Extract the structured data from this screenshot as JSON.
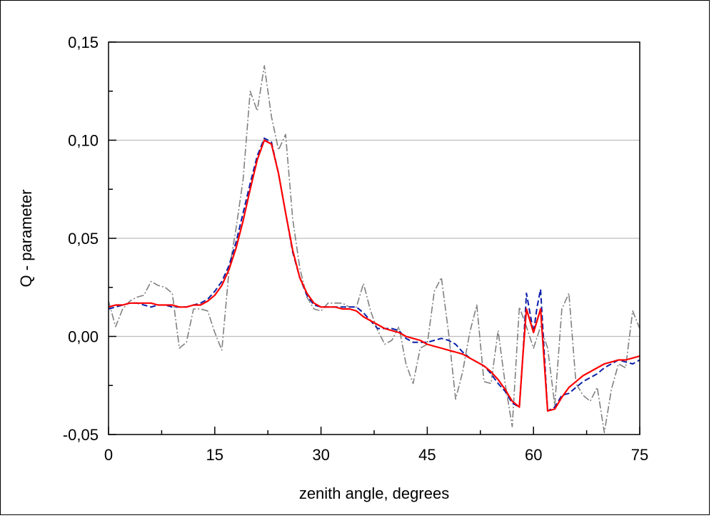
{
  "chart_data": {
    "type": "line",
    "title": "",
    "xlabel": "zenith angle, degrees",
    "ylabel": "Q - parameter",
    "xlim": [
      0,
      75
    ],
    "ylim": [
      -0.05,
      0.15
    ],
    "x_ticks": [
      0,
      15,
      30,
      45,
      60,
      75
    ],
    "x_tick_labels": [
      "0",
      "15",
      "30",
      "45",
      "60",
      "75"
    ],
    "y_ticks": [
      -0.05,
      0.0,
      0.05,
      0.1,
      0.15
    ],
    "y_tick_labels": [
      "-0,05",
      "0,00",
      "0,05",
      "0,10",
      "0,15"
    ],
    "grid": "horizontal",
    "legend": "none",
    "series": [
      {
        "style": "dash-dot",
        "color": "#808080",
        "x": [
          0,
          1,
          2,
          3,
          4,
          5,
          6,
          7,
          8,
          9,
          10,
          11,
          12,
          13,
          14,
          15,
          16,
          17,
          18,
          19,
          20,
          21,
          22,
          23,
          24,
          25,
          26,
          27,
          28,
          29,
          30,
          31,
          32,
          33,
          34,
          35,
          36,
          37,
          38,
          39,
          40,
          41,
          42,
          43,
          44,
          45,
          46,
          47,
          48,
          49,
          50,
          51,
          52,
          53,
          54,
          55,
          56,
          57,
          58,
          59,
          60,
          61,
          62,
          63,
          64,
          65,
          66,
          67,
          68,
          69,
          70,
          71,
          72,
          73,
          74,
          75
        ],
        "y": [
          0.018,
          0.005,
          0.014,
          0.018,
          0.02,
          0.021,
          0.028,
          0.026,
          0.025,
          0.022,
          -0.006,
          -0.003,
          0.014,
          0.014,
          0.013,
          0.002,
          -0.007,
          0.033,
          0.055,
          0.08,
          0.125,
          0.115,
          0.138,
          0.112,
          0.095,
          0.103,
          0.06,
          0.035,
          0.02,
          0.014,
          0.013,
          0.017,
          0.017,
          0.017,
          0.015,
          0.015,
          0.027,
          0.013,
          0.003,
          -0.004,
          -0.002,
          0.005,
          -0.014,
          -0.024,
          -0.006,
          -0.004,
          0.023,
          0.03,
          0.002,
          -0.032,
          -0.018,
          0.002,
          0.016,
          -0.023,
          -0.024,
          0.003,
          -0.024,
          -0.046,
          0.015,
          0.005,
          -0.006,
          0.005,
          -0.006,
          -0.035,
          0.014,
          0.022,
          -0.024,
          -0.03,
          -0.033,
          -0.026,
          -0.049,
          -0.027,
          -0.014,
          -0.016,
          0.013,
          0.004
        ]
      },
      {
        "style": "dashed",
        "color": "#0a1fa8",
        "x": [
          0,
          1,
          2,
          3,
          4,
          5,
          6,
          7,
          8,
          9,
          10,
          11,
          12,
          13,
          14,
          15,
          16,
          17,
          18,
          19,
          20,
          21,
          22,
          23,
          24,
          25,
          26,
          27,
          28,
          29,
          30,
          31,
          32,
          33,
          34,
          35,
          36,
          37,
          38,
          39,
          40,
          41,
          42,
          43,
          44,
          45,
          46,
          47,
          48,
          49,
          50,
          51,
          52,
          53,
          54,
          55,
          56,
          57,
          58,
          58.5,
          59,
          60,
          60.5,
          61,
          62,
          63,
          64,
          65,
          66,
          67,
          68,
          69,
          70,
          71,
          72,
          73,
          74,
          75
        ],
        "y": [
          0.014,
          0.015,
          0.016,
          0.017,
          0.017,
          0.016,
          0.015,
          0.016,
          0.016,
          0.015,
          0.015,
          0.015,
          0.016,
          0.017,
          0.019,
          0.023,
          0.028,
          0.036,
          0.048,
          0.063,
          0.078,
          0.092,
          0.101,
          0.099,
          0.083,
          0.063,
          0.043,
          0.03,
          0.021,
          0.016,
          0.015,
          0.015,
          0.015,
          0.015,
          0.015,
          0.015,
          0.012,
          0.008,
          0.004,
          0.004,
          0.004,
          0.003,
          -0.001,
          -0.003,
          -0.003,
          -0.003,
          -0.002,
          -0.001,
          -0.002,
          -0.004,
          -0.008,
          -0.011,
          -0.013,
          -0.015,
          -0.019,
          -0.024,
          -0.028,
          -0.034,
          -0.036,
          -0.01,
          0.022,
          0.002,
          0.015,
          0.024,
          -0.038,
          -0.036,
          -0.03,
          -0.029,
          -0.026,
          -0.023,
          -0.021,
          -0.019,
          -0.016,
          -0.014,
          -0.012,
          -0.013,
          -0.014,
          -0.012
        ]
      },
      {
        "style": "solid",
        "color": "#ff0000",
        "x": [
          0,
          1,
          2,
          3,
          4,
          5,
          6,
          7,
          8,
          9,
          10,
          11,
          12,
          13,
          14,
          15,
          16,
          17,
          18,
          19,
          20,
          21,
          22,
          23,
          24,
          25,
          26,
          27,
          28,
          29,
          30,
          31,
          32,
          33,
          34,
          35,
          36,
          37,
          38,
          39,
          40,
          41,
          42,
          43,
          44,
          45,
          46,
          47,
          48,
          49,
          50,
          51,
          52,
          53,
          54,
          55,
          56,
          57,
          58,
          58.5,
          59,
          60,
          60.5,
          61,
          62,
          63,
          64,
          65,
          66,
          67,
          68,
          69,
          70,
          71,
          72,
          73,
          74,
          75
        ],
        "y": [
          0.015,
          0.016,
          0.016,
          0.017,
          0.017,
          0.017,
          0.017,
          0.016,
          0.016,
          0.016,
          0.015,
          0.015,
          0.016,
          0.016,
          0.018,
          0.021,
          0.026,
          0.034,
          0.045,
          0.059,
          0.075,
          0.09,
          0.1,
          0.098,
          0.083,
          0.063,
          0.044,
          0.03,
          0.022,
          0.017,
          0.015,
          0.015,
          0.015,
          0.014,
          0.014,
          0.013,
          0.01,
          0.008,
          0.006,
          0.004,
          0.003,
          0.002,
          0.0,
          -0.001,
          -0.002,
          -0.004,
          -0.005,
          -0.006,
          -0.007,
          -0.008,
          -0.009,
          -0.011,
          -0.013,
          -0.015,
          -0.018,
          -0.022,
          -0.027,
          -0.033,
          -0.036,
          -0.01,
          0.014,
          0.002,
          0.008,
          0.014,
          -0.038,
          -0.037,
          -0.031,
          -0.026,
          -0.023,
          -0.02,
          -0.018,
          -0.016,
          -0.014,
          -0.013,
          -0.012,
          -0.012,
          -0.011,
          -0.01
        ]
      }
    ]
  }
}
